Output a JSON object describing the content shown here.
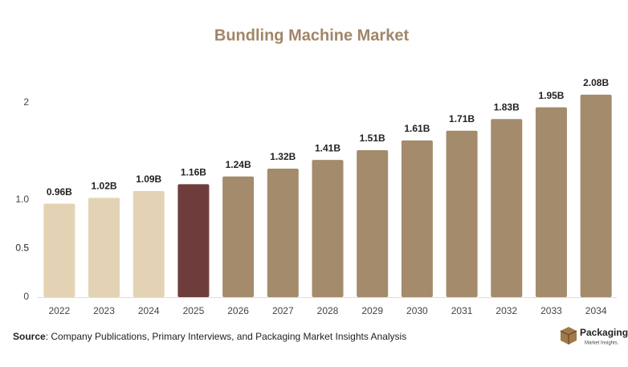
{
  "chart_data": {
    "type": "bar",
    "title": "Bundling Machine Market",
    "categories": [
      "2022",
      "2023",
      "2024",
      "2025",
      "2026",
      "2027",
      "2028",
      "2029",
      "2030",
      "2031",
      "2032",
      "2033",
      "2034"
    ],
    "values": [
      0.96,
      1.02,
      1.09,
      1.16,
      1.24,
      1.32,
      1.41,
      1.51,
      1.61,
      1.71,
      1.83,
      1.95,
      2.08
    ],
    "value_labels": [
      "0.96B",
      "1.02B",
      "1.09B",
      "1.16B",
      "1.24B",
      "1.32B",
      "1.41B",
      "1.51B",
      "1.61B",
      "1.71B",
      "1.83B",
      "1.95B",
      "2.08B"
    ],
    "colors": [
      "#e3d3b4",
      "#e3d3b4",
      "#e3d3b4",
      "#6f3c3c",
      "#a38b6c",
      "#a38b6c",
      "#a38b6c",
      "#a38b6c",
      "#a38b6c",
      "#a38b6c",
      "#a38b6c",
      "#a38b6c",
      "#a38b6c"
    ],
    "ylim": [
      0,
      2.5
    ],
    "yticks": [
      0,
      0.5,
      {
        "value": 1,
        "label": "1.0"
      },
      0.5,
      2
    ],
    "grid": false
  },
  "footer": {
    "source_label": "Source",
    "source_text": ": Company Publications, Primary Interviews, and Packaging Market Insights Analysis",
    "logo_title": "Packaging",
    "logo_subtitle": "Market Insights."
  }
}
